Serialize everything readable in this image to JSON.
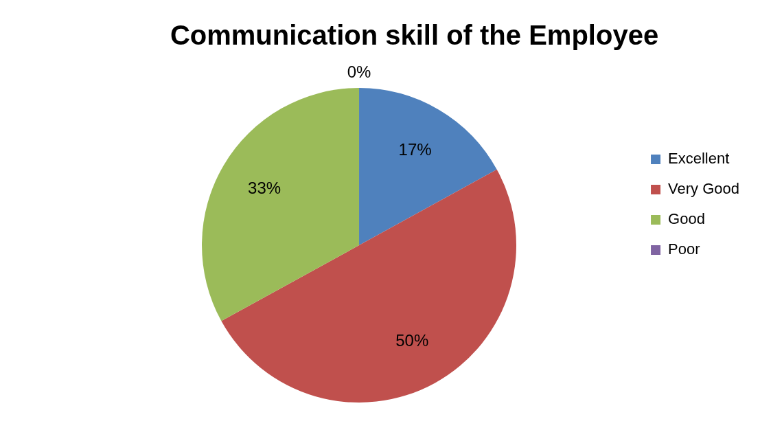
{
  "chart_data": {
    "type": "pie",
    "title": "Communication skill of the Employee",
    "categories": [
      "Excellent",
      "Very Good",
      "Good",
      "Poor"
    ],
    "values": [
      17,
      50,
      33,
      0
    ],
    "colors": [
      "#4f81bd",
      "#c0504d",
      "#9bbb59",
      "#8064a2"
    ],
    "value_labels": [
      "17%",
      "50%",
      "33%",
      "0%"
    ],
    "legend": "right"
  }
}
